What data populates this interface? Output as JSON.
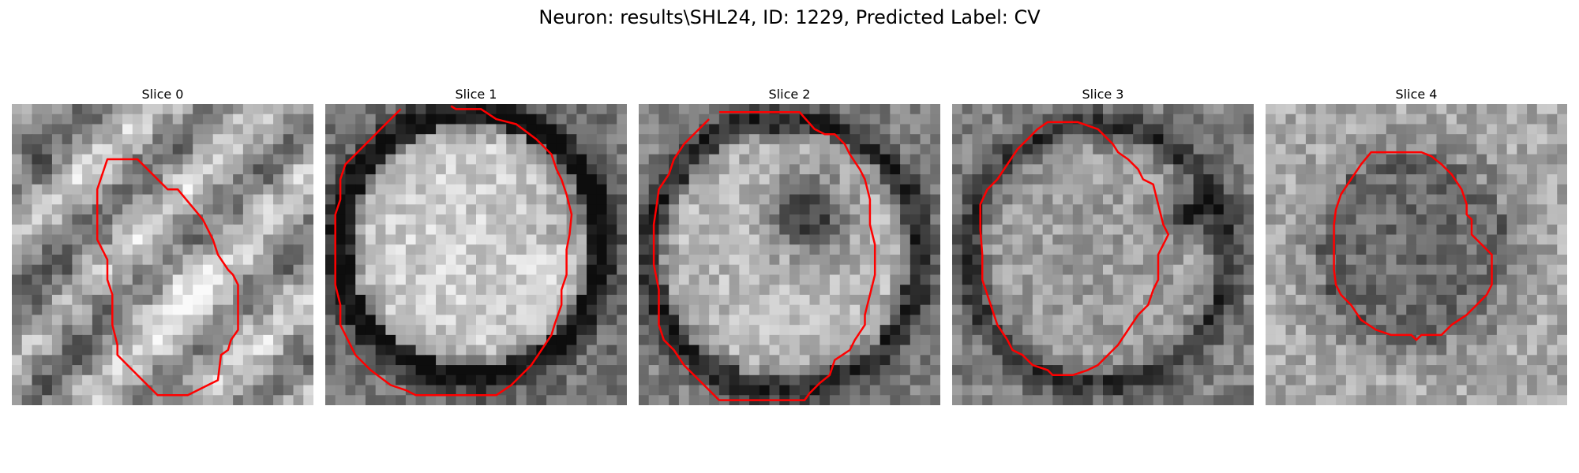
{
  "figure": {
    "title": "Neuron: results\\SHL24, ID: 1229, Predicted Label: CV"
  },
  "panels": [
    {
      "title": "Slice 0"
    },
    {
      "title": "Slice 1"
    },
    {
      "title": "Slice 2"
    },
    {
      "title": "Slice 3"
    },
    {
      "title": "Slice 4"
    }
  ],
  "colors": {
    "contour": "#ff0000",
    "colormap": "grayscale"
  }
}
